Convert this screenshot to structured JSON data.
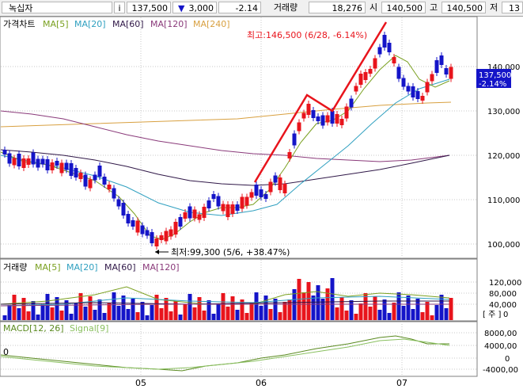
{
  "header": {
    "stock_name": "녹십자",
    "info_icon": "i",
    "price": "137,500",
    "change_icon": "down-triangle-icon",
    "change_sym": "▼",
    "change": "3,000",
    "change_pct": "-2.14",
    "volume_label": "거래량",
    "volume": "18,276",
    "open_label": "시",
    "open": "140,500",
    "high_label": "고",
    "high": "140,500",
    "low_label": "저",
    "low": "13"
  },
  "price_panel": {
    "title": "가격차트",
    "legend": [
      {
        "label": "MA[5]",
        "color": "#7aa020"
      },
      {
        "label": "MA[20]",
        "color": "#30a0c0"
      },
      {
        "label": "MA[60]",
        "color": "#301848"
      },
      {
        "label": "MA[120]",
        "color": "#8a3a7a"
      },
      {
        "label": "MA[240]",
        "color": "#d8a040"
      }
    ],
    "yaxis_ticks": [
      "140,000",
      "130,000",
      "120,000",
      "110,000",
      "100,000"
    ],
    "last_price_label": "137,500",
    "last_change_label": "-2.14%",
    "high_note": "최고:146,500 (6/28, -6.14%)",
    "low_note": "최저:99,300 (5/6, +38.47%)"
  },
  "volume_panel": {
    "title": "거래량",
    "legend": [
      {
        "label": "MA[5]",
        "color": "#7aa020"
      },
      {
        "label": "MA[20]",
        "color": "#30a0c0"
      },
      {
        "label": "MA[60]",
        "color": "#301848"
      },
      {
        "label": "MA[120]",
        "color": "#8a3a7a"
      }
    ],
    "yaxis_ticks": [
      "120,000",
      "80,000",
      "40,000",
      "0"
    ],
    "unit_label": "[ 주 ]"
  },
  "macd_panel": {
    "title": "MACD[12, 26]",
    "signal_label": "Signal[9]",
    "left_zero": "0",
    "yaxis_ticks": [
      "8000,00",
      "4000,00",
      "0",
      "-4000,00"
    ]
  },
  "xaxis": {
    "labels": [
      "05",
      "06",
      "07"
    ]
  },
  "colors": {
    "up": "#e8141c",
    "down": "#1414c8",
    "trend": "#e8141c",
    "axis": "#808080",
    "grid": "#c0c0c0"
  }
}
